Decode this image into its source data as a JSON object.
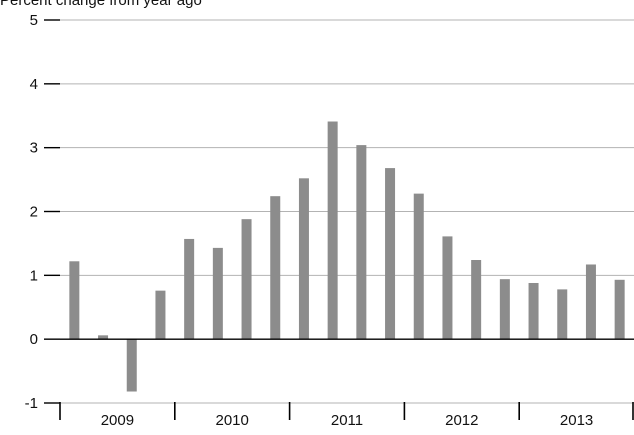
{
  "chart_data": {
    "type": "bar",
    "ylabel": "Percent change from year ago",
    "ylim": [
      -1,
      5
    ],
    "yticks": [
      -1,
      0,
      1,
      2,
      3,
      4,
      5
    ],
    "grid": true,
    "x_groups": [
      "2009",
      "2010",
      "2011",
      "2012",
      "2013"
    ],
    "categories": [
      "2009 Q1",
      "2009 Q2",
      "2009 Q3",
      "2009 Q4",
      "2010 Q1",
      "2010 Q2",
      "2010 Q3",
      "2010 Q4",
      "2011 Q1",
      "2011 Q2",
      "2011 Q3",
      "2011 Q4",
      "2012 Q1",
      "2012 Q2",
      "2012 Q3",
      "2012 Q4",
      "2013 Q1",
      "2013 Q2",
      "2013 Q3",
      "2013 Q4"
    ],
    "values": [
      1.22,
      0.06,
      -0.82,
      0.76,
      1.57,
      1.43,
      1.88,
      2.24,
      2.52,
      3.41,
      3.04,
      2.68,
      2.28,
      1.61,
      1.24,
      0.94,
      0.88,
      0.78,
      1.17,
      0.93
    ],
    "bar_color": "#8c8c8c",
    "grid_color": "#b3b3b3"
  }
}
